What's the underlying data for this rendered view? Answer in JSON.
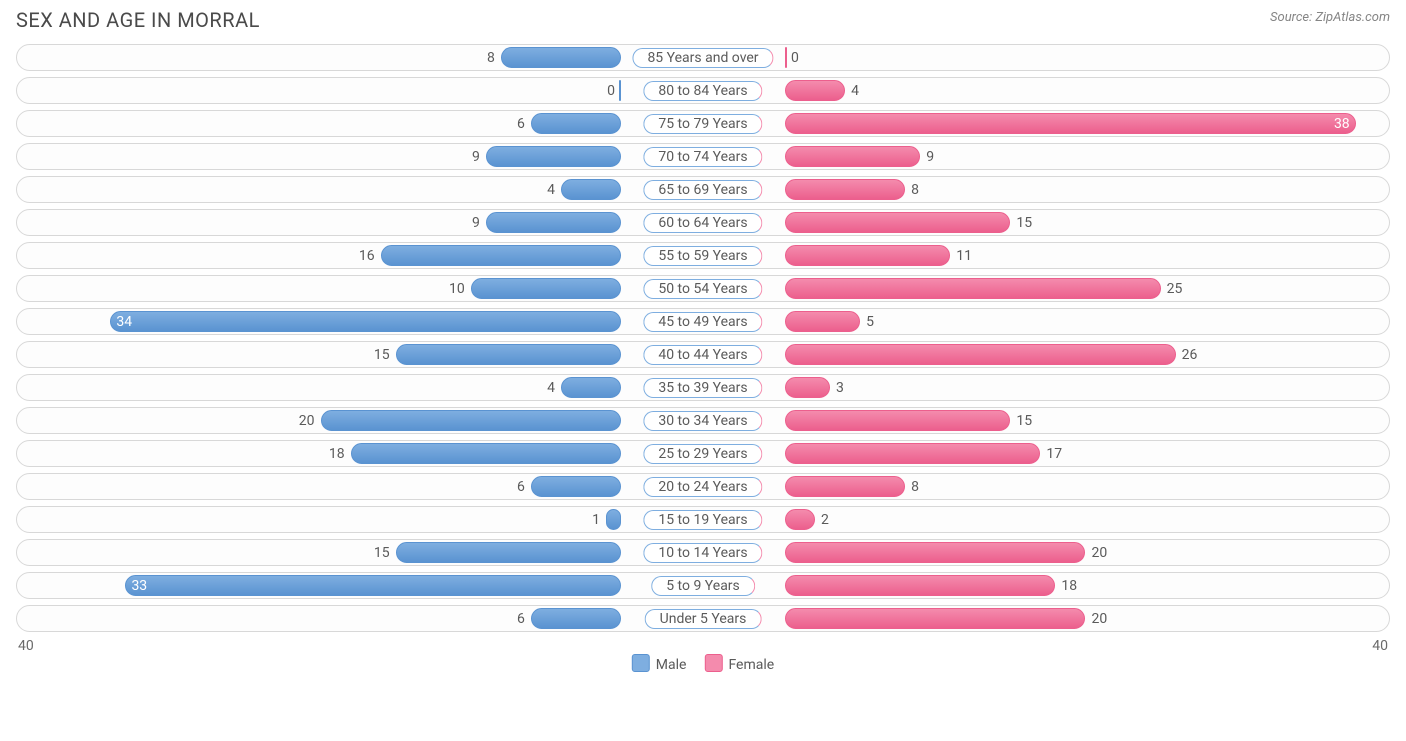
{
  "header": {
    "title": "SEX AND AGE IN MORRAL",
    "source_prefix": "Source: ",
    "source_name": "ZipAtlas.com"
  },
  "chart": {
    "type": "population-pyramid",
    "axis_max": 40,
    "axis_label_left": "40",
    "axis_label_right": "40",
    "colors": {
      "male_fill": "#7eaee0",
      "male_border": "#5a93d1",
      "female_fill": "#f48bad",
      "female_border": "#ec5f8d",
      "track_border": "#d8d8d8",
      "track_bg": "#fdfdfd",
      "background": "#ffffff",
      "text": "#5a5a5a",
      "value_inside": "#ffffff"
    },
    "age_pill": {
      "border_color_left": "#7eaee0",
      "border_color_right": "#f48bad"
    },
    "center_gap_percent_of_half": 12,
    "inside_label_min_percent": 60,
    "legend": {
      "male_label": "Male",
      "female_label": "Female"
    },
    "rows": [
      {
        "label": "85 Years and over",
        "male": 8,
        "female": 0
      },
      {
        "label": "80 to 84 Years",
        "male": 0,
        "female": 4
      },
      {
        "label": "75 to 79 Years",
        "male": 6,
        "female": 38
      },
      {
        "label": "70 to 74 Years",
        "male": 9,
        "female": 9
      },
      {
        "label": "65 to 69 Years",
        "male": 4,
        "female": 8
      },
      {
        "label": "60 to 64 Years",
        "male": 9,
        "female": 15
      },
      {
        "label": "55 to 59 Years",
        "male": 16,
        "female": 11
      },
      {
        "label": "50 to 54 Years",
        "male": 10,
        "female": 25
      },
      {
        "label": "45 to 49 Years",
        "male": 34,
        "female": 5
      },
      {
        "label": "40 to 44 Years",
        "male": 15,
        "female": 26
      },
      {
        "label": "35 to 39 Years",
        "male": 4,
        "female": 3
      },
      {
        "label": "30 to 34 Years",
        "male": 20,
        "female": 15
      },
      {
        "label": "25 to 29 Years",
        "male": 18,
        "female": 17
      },
      {
        "label": "20 to 24 Years",
        "male": 6,
        "female": 8
      },
      {
        "label": "15 to 19 Years",
        "male": 1,
        "female": 2
      },
      {
        "label": "10 to 14 Years",
        "male": 15,
        "female": 20
      },
      {
        "label": "5 to 9 Years",
        "male": 33,
        "female": 18
      },
      {
        "label": "Under 5 Years",
        "male": 6,
        "female": 20
      }
    ]
  }
}
